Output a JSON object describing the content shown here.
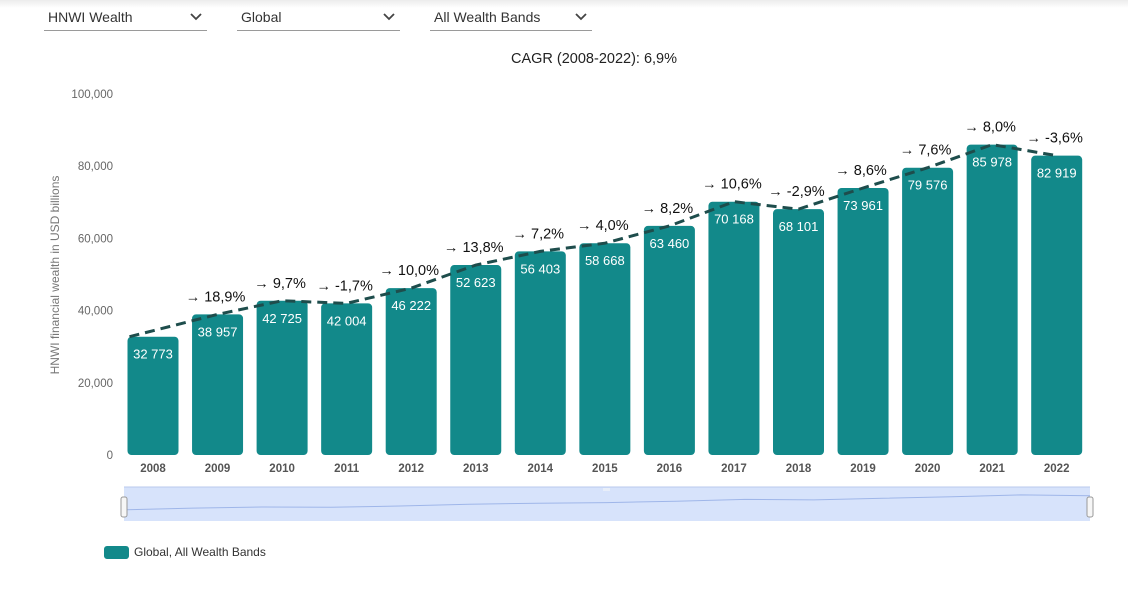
{
  "filters": {
    "metric": "HNWI Wealth",
    "region": "Global",
    "band": "All Wealth Bands"
  },
  "colors": {
    "bar": "#12898a",
    "trend": "#1e4d4c",
    "navigator_fill": "#d7e3fb",
    "navigator_line": "#9fb6e9"
  },
  "chart_data": {
    "type": "bar",
    "title": "CAGR (2008-2022): 6,9%",
    "ylabel": "HNWI financial wealth in USD billions",
    "xlabel": "",
    "ylim": [
      0,
      100000
    ],
    "y_ticks": [
      "0",
      "20,000",
      "40,000",
      "60,000",
      "80,000",
      "100,000"
    ],
    "categories": [
      "2008",
      "2009",
      "2010",
      "2011",
      "2012",
      "2013",
      "2014",
      "2015",
      "2016",
      "2017",
      "2018",
      "2019",
      "2020",
      "2021",
      "2022"
    ],
    "values": [
      32773,
      38957,
      42725,
      42004,
      46222,
      52623,
      56403,
      58668,
      63460,
      70168,
      68101,
      73961,
      79576,
      85978,
      82919
    ],
    "value_labels": [
      "32 773",
      "38 957",
      "42 725",
      "42 004",
      "46 222",
      "52 623",
      "56 403",
      "58 668",
      "63 460",
      "70 168",
      "68 101",
      "73 961",
      "79 576",
      "85 978",
      "82 919"
    ],
    "growth_labels": [
      "",
      "→ 18,9%",
      "→ 9,7%",
      "→ -1,7%",
      "→ 10,0%",
      "→ 13,8%",
      "→ 7,2%",
      "→ 4,0%",
      "→ 8,2%",
      "→ 10,6%",
      "→ -2,9%",
      "→ 8,6%",
      "→ 7,6%",
      "→ 8,0%",
      "→ -3,6%"
    ],
    "series": [
      {
        "name": "Global, All Wealth Bands"
      }
    ],
    "trend_line": "dashed",
    "grid": false,
    "legend_position": "bottom-left"
  }
}
